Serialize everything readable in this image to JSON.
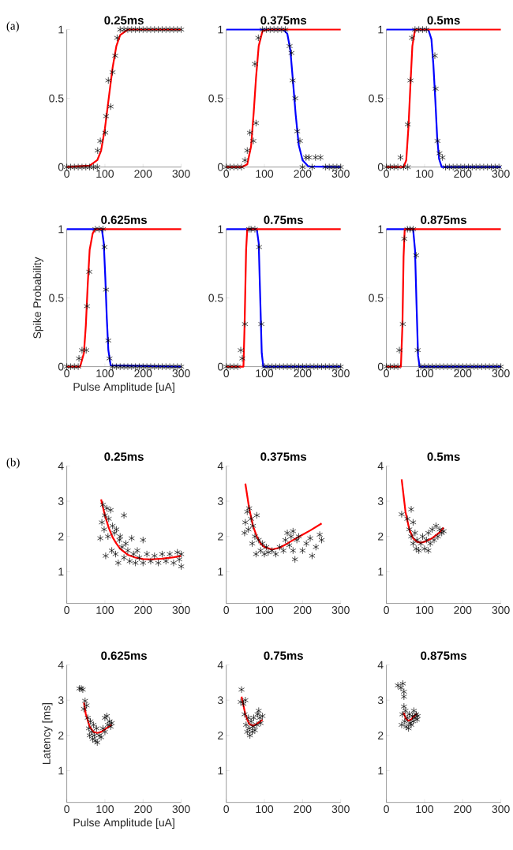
{
  "chart_data": [
    {
      "type": "scatter",
      "title": "0.25ms",
      "annotations": [
        "(a)"
      ],
      "marker": "cross",
      "xlim": [
        0,
        300
      ],
      "ylim": [
        0,
        1
      ],
      "xticks": [
        0,
        100,
        200,
        300
      ],
      "yticks": [
        0,
        0.5,
        1
      ],
      "series": [
        {
          "color": "#000000",
          "x": [
            0,
            10,
            20,
            30,
            40,
            50,
            60,
            70,
            80,
            81,
            88,
            101,
            103,
            109,
            115,
            120,
            127,
            132,
            140,
            150,
            160,
            170,
            180,
            190,
            200,
            210,
            220,
            230,
            240,
            250,
            260,
            270,
            280,
            290,
            300
          ],
          "values": [
            0,
            0,
            0,
            0,
            0,
            0,
            0,
            0,
            0,
            0.12,
            0.19,
            0.25,
            0.37,
            0.63,
            0.44,
            0.69,
            0.81,
            0.94,
            1,
            1,
            1,
            1,
            1,
            1,
            1,
            1,
            1,
            1,
            1,
            1,
            1,
            1,
            1,
            1,
            1
          ]
        },
        {
          "type": "line",
          "marker": "none",
          "color": "#ff0000",
          "x": [
            0,
            60,
            80,
            90,
            100,
            110,
            120,
            130,
            140,
            160,
            300
          ],
          "values": [
            0,
            0.01,
            0.05,
            0.12,
            0.28,
            0.5,
            0.72,
            0.88,
            0.96,
            1,
            1
          ]
        }
      ]
    },
    {
      "type": "scatter",
      "title": "0.375ms",
      "marker": "cross",
      "xlim": [
        0,
        300
      ],
      "ylim": [
        0,
        1
      ],
      "xticks": [
        0,
        100,
        200,
        300
      ],
      "yticks": [
        0,
        0.5,
        1
      ],
      "series": [
        {
          "color": "#000000",
          "x": [
            0,
            10,
            20,
            30,
            40,
            49,
            55,
            62,
            71,
            75,
            78,
            84,
            95,
            105,
            115,
            125,
            135,
            145,
            155,
            166,
            171,
            174,
            181,
            186,
            193,
            200,
            209,
            217,
            225,
            234,
            247,
            260,
            270,
            280,
            290,
            300
          ],
          "values": [
            0,
            0,
            0,
            0,
            0,
            0.05,
            0.12,
            0.25,
            0.19,
            0.75,
            0.32,
            0.94,
            1,
            1,
            1,
            1,
            1,
            1,
            1,
            0.88,
            0.83,
            0.63,
            0.5,
            0.26,
            0.19,
            0,
            0.07,
            0.07,
            0,
            0.07,
            0.07,
            0,
            0,
            0,
            0,
            0
          ]
        },
        {
          "type": "line",
          "marker": "none",
          "color": "#0000ff",
          "x": [
            0,
            150,
            160,
            168,
            175,
            182,
            190,
            200,
            215,
            300
          ],
          "values": [
            1,
            1,
            0.97,
            0.85,
            0.62,
            0.38,
            0.16,
            0.05,
            0.005,
            0
          ]
        },
        {
          "type": "line",
          "marker": "none",
          "color": "#ff0000",
          "x": [
            0,
            40,
            55,
            65,
            72,
            78,
            85,
            95,
            110,
            300
          ],
          "values": [
            0,
            0,
            0.02,
            0.15,
            0.4,
            0.65,
            0.88,
            0.99,
            1,
            1
          ]
        }
      ]
    },
    {
      "type": "scatter",
      "title": "0.5ms",
      "marker": "cross",
      "xlim": [
        0,
        300
      ],
      "ylim": [
        0,
        1
      ],
      "xticks": [
        0,
        100,
        200,
        300
      ],
      "yticks": [
        0,
        0.5,
        1
      ],
      "series": [
        {
          "color": "#000000",
          "x": [
            0,
            10,
            20,
            30,
            37,
            45,
            56,
            56,
            63,
            67,
            75,
            85,
            95,
            105,
            127,
            129,
            134,
            139,
            147,
            155,
            165,
            175,
            185,
            195,
            205,
            215,
            225,
            235,
            245,
            255,
            265,
            275,
            285,
            295
          ],
          "values": [
            0,
            0,
            0,
            0,
            0.07,
            0,
            0,
            0.31,
            0.63,
            0.94,
            1,
            1,
            1,
            1,
            0.81,
            0.57,
            0.19,
            0.1,
            0.07,
            0,
            0,
            0,
            0,
            0,
            0,
            0,
            0,
            0,
            0,
            0,
            0,
            0,
            0,
            0
          ]
        },
        {
          "type": "line",
          "marker": "none",
          "color": "#0000ff",
          "x": [
            0,
            110,
            118,
            123,
            128,
            133,
            138,
            145,
            300
          ],
          "values": [
            1,
            1,
            0.93,
            0.75,
            0.5,
            0.22,
            0.06,
            0,
            0
          ]
        },
        {
          "type": "line",
          "marker": "none",
          "color": "#ff0000",
          "x": [
            0,
            45,
            52,
            58,
            63,
            68,
            75,
            300
          ],
          "values": [
            0,
            0,
            0.05,
            0.3,
            0.6,
            0.88,
            1,
            1
          ]
        }
      ]
    },
    {
      "type": "scatter",
      "title": "0.625ms",
      "xlabel": "Pulse Amplitude [uA]",
      "ylabel": "Spike Probability",
      "marker": "cross",
      "xlim": [
        0,
        300
      ],
      "ylim": [
        0,
        1
      ],
      "xticks": [
        0,
        100,
        200,
        300
      ],
      "yticks": [
        0,
        0.5,
        1
      ],
      "series": [
        {
          "color": "#000000",
          "x": [
            0,
            10,
            20,
            30,
            32,
            40,
            51,
            53,
            59,
            75,
            85,
            95,
            99,
            103,
            109,
            112,
            120,
            130,
            140,
            150,
            160,
            170,
            180,
            190,
            200,
            210,
            220,
            230,
            240,
            250,
            260,
            270,
            280,
            290,
            300
          ],
          "values": [
            0,
            0,
            0,
            0,
            0.06,
            0.12,
            0.12,
            0.44,
            0.69,
            1,
            1,
            1,
            0.87,
            0.56,
            0.19,
            0.06,
            0,
            0,
            0,
            0,
            0,
            0,
            0,
            0,
            0,
            0,
            0,
            0,
            0,
            0,
            0,
            0,
            0,
            0,
            0
          ]
        },
        {
          "type": "line",
          "marker": "none",
          "color": "#0000ff",
          "x": [
            0,
            92,
            97,
            101,
            105,
            109,
            115,
            300
          ],
          "values": [
            1,
            1,
            0.9,
            0.65,
            0.35,
            0.12,
            0.01,
            0
          ]
        },
        {
          "type": "line",
          "marker": "none",
          "color": "#ff0000",
          "x": [
            0,
            35,
            45,
            50,
            55,
            60,
            68,
            75,
            300
          ],
          "values": [
            0,
            0,
            0.1,
            0.3,
            0.6,
            0.85,
            0.97,
            1,
            1
          ]
        }
      ]
    },
    {
      "type": "scatter",
      "title": "0.75ms",
      "marker": "cross",
      "xlim": [
        0,
        300
      ],
      "ylim": [
        0,
        1
      ],
      "xticks": [
        0,
        100,
        200,
        300
      ],
      "yticks": [
        0,
        0.5,
        1
      ],
      "series": [
        {
          "color": "#000000",
          "x": [
            0,
            10,
            20,
            30,
            38,
            42,
            49,
            60,
            65,
            75,
            86,
            92,
            100,
            110,
            120,
            130,
            140,
            150,
            160,
            170,
            180,
            190,
            200,
            210,
            220,
            230,
            240,
            250,
            260,
            270,
            280,
            290,
            300
          ],
          "values": [
            0,
            0,
            0,
            0,
            0.12,
            0.06,
            0.31,
            1,
            1,
            1,
            0.87,
            0.31,
            0,
            0,
            0,
            0,
            0,
            0,
            0,
            0,
            0,
            0,
            0,
            0,
            0,
            0,
            0,
            0,
            0,
            0,
            0,
            0,
            0
          ]
        },
        {
          "type": "line",
          "marker": "none",
          "color": "#0000ff",
          "x": [
            0,
            80,
            85,
            89,
            93,
            97,
            300
          ],
          "values": [
            1,
            1,
            0.9,
            0.5,
            0.1,
            0,
            0
          ]
        },
        {
          "type": "line",
          "marker": "none",
          "color": "#ff0000",
          "x": [
            0,
            45,
            48,
            52,
            55,
            300
          ],
          "values": [
            0,
            0,
            0.3,
            0.85,
            1,
            1
          ]
        }
      ]
    },
    {
      "type": "scatter",
      "title": "0.875ms",
      "marker": "cross",
      "xlim": [
        0,
        300
      ],
      "ylim": [
        0,
        1
      ],
      "xticks": [
        0,
        100,
        200,
        300
      ],
      "yticks": [
        0,
        0.5,
        1
      ],
      "series": [
        {
          "color": "#000000",
          "x": [
            0,
            10,
            20,
            30,
            34,
            43,
            47,
            55,
            62,
            70,
            78,
            82,
            90,
            100,
            110,
            120,
            130,
            140,
            150,
            160,
            170,
            180,
            190,
            200,
            210,
            220,
            230,
            240,
            250,
            260,
            270,
            280,
            290,
            300
          ],
          "values": [
            0,
            0,
            0,
            0,
            0.12,
            0.31,
            0.93,
            1,
            1,
            1,
            0.81,
            0.12,
            0,
            0,
            0,
            0,
            0,
            0,
            0,
            0,
            0,
            0,
            0,
            0,
            0,
            0,
            0,
            0,
            0,
            0,
            0,
            0,
            0,
            0
          ]
        },
        {
          "type": "line",
          "marker": "none",
          "color": "#0000ff",
          "x": [
            0,
            70,
            75,
            79,
            83,
            87,
            300
          ],
          "values": [
            1,
            1,
            0.85,
            0.45,
            0.08,
            0,
            0
          ]
        },
        {
          "type": "line",
          "marker": "none",
          "color": "#ff0000",
          "x": [
            0,
            38,
            42,
            45,
            48,
            300
          ],
          "values": [
            0,
            0,
            0.3,
            0.8,
            1,
            1
          ]
        }
      ]
    },
    {
      "type": "scatter",
      "title": "0.25ms",
      "annotations": [
        "(b)"
      ],
      "marker": "cross",
      "xlim": [
        0,
        300
      ],
      "ylim": [
        0.1,
        4
      ],
      "xticks": [
        0,
        100,
        200,
        300
      ],
      "yticks": [
        1,
        2,
        3,
        4
      ],
      "series": [
        {
          "color": "#000000",
          "x": [
            88,
            92,
            95,
            98,
            100,
            102,
            105,
            108,
            110,
            115,
            118,
            120,
            125,
            128,
            130,
            135,
            138,
            140,
            145,
            150,
            150,
            155,
            160,
            165,
            170,
            175,
            180,
            185,
            190,
            200,
            200,
            210,
            220,
            230,
            240,
            250,
            260,
            270,
            280,
            290,
            295,
            300,
            300
          ],
          "values": [
            1.95,
            2.4,
            2.9,
            2.2,
            2.6,
            1.45,
            2.8,
            2.0,
            2.5,
            2.75,
            1.6,
            2.3,
            2.1,
            1.5,
            2.2,
            1.25,
            1.9,
            2.0,
            1.7,
            2.6,
            1.4,
            1.8,
            1.6,
            1.3,
            1.95,
            1.5,
            1.25,
            1.6,
            1.4,
            1.9,
            1.25,
            1.5,
            1.3,
            1.45,
            1.25,
            1.5,
            1.3,
            1.5,
            1.25,
            1.55,
            1.35,
            1.15,
            1.5
          ]
        },
        {
          "type": "line",
          "marker": "none",
          "color": "#ff0000",
          "x": [
            90,
            100,
            110,
            120,
            130,
            140,
            160,
            180,
            200,
            220,
            250,
            280,
            300
          ],
          "values": [
            3.05,
            2.6,
            2.25,
            1.98,
            1.8,
            1.65,
            1.48,
            1.4,
            1.36,
            1.35,
            1.37,
            1.41,
            1.45
          ]
        }
      ]
    },
    {
      "type": "scatter",
      "title": "0.375ms",
      "marker": "cross",
      "xlim": [
        0,
        300
      ],
      "ylim": [
        0.1,
        4
      ],
      "xticks": [
        0,
        100,
        200,
        300
      ],
      "yticks": [
        1,
        2,
        3,
        4
      ],
      "series": [
        {
          "color": "#000000",
          "x": [
            48,
            50,
            55,
            58,
            60,
            65,
            68,
            70,
            75,
            78,
            80,
            85,
            90,
            95,
            100,
            105,
            110,
            120,
            130,
            140,
            150,
            155,
            160,
            165,
            170,
            175,
            175,
            180,
            185,
            190,
            200,
            210,
            220,
            225,
            235,
            245,
            250
          ],
          "values": [
            2.1,
            2.4,
            2.7,
            2.2,
            2.8,
            2.5,
            1.8,
            2.3,
            2.0,
            1.5,
            2.6,
            1.9,
            1.6,
            1.8,
            1.5,
            1.7,
            1.55,
            1.6,
            1.5,
            1.7,
            1.6,
            1.9,
            2.1,
            1.75,
            2.0,
            2.15,
            1.6,
            1.35,
            1.9,
            2.0,
            1.6,
            1.8,
            1.95,
            1.45,
            1.7,
            2.05,
            1.9
          ]
        },
        {
          "type": "line",
          "marker": "none",
          "color": "#ff0000",
          "x": [
            50,
            60,
            70,
            80,
            90,
            100,
            120,
            140,
            160,
            180,
            200,
            220,
            250
          ],
          "values": [
            3.5,
            2.8,
            2.3,
            2.0,
            1.8,
            1.7,
            1.63,
            1.68,
            1.8,
            1.93,
            2.05,
            2.17,
            2.37
          ]
        }
      ]
    },
    {
      "type": "scatter",
      "title": "0.5ms",
      "marker": "cross",
      "xlim": [
        0,
        300
      ],
      "ylim": [
        0.1,
        4
      ],
      "xticks": [
        0,
        100,
        200,
        300
      ],
      "yticks": [
        1,
        2,
        3,
        4
      ],
      "series": [
        {
          "color": "#000000",
          "x": [
            40,
            55,
            60,
            65,
            65,
            70,
            70,
            75,
            78,
            80,
            85,
            90,
            95,
            100,
            105,
            110,
            110,
            115,
            120,
            125,
            130,
            135,
            140,
            145,
            150
          ],
          "values": [
            2.63,
            2.5,
            2.2,
            2.77,
            2.0,
            2.4,
            1.8,
            2.1,
            1.65,
            1.9,
            1.6,
            1.8,
            2.0,
            1.65,
            1.9,
            2.1,
            1.6,
            1.8,
            2.2,
            1.9,
            2.3,
            2.0,
            2.2,
            2.1,
            2.15
          ]
        },
        {
          "type": "line",
          "marker": "none",
          "color": "#ff0000",
          "x": [
            40,
            50,
            60,
            70,
            80,
            90,
            100,
            120,
            140,
            150
          ],
          "values": [
            3.62,
            2.7,
            2.2,
            1.95,
            1.85,
            1.82,
            1.85,
            1.95,
            2.12,
            2.25
          ]
        }
      ]
    },
    {
      "type": "scatter",
      "title": "0.625ms",
      "xlabel": "Pulse Amplitude [uA]",
      "ylabel": "Latency [ms]",
      "marker": "cross",
      "xlim": [
        0,
        300
      ],
      "ylim": [
        0.1,
        4
      ],
      "xticks": [
        0,
        100,
        200,
        300
      ],
      "yticks": [
        1,
        2,
        3,
        4
      ],
      "series": [
        {
          "color": "#000000",
          "x": [
            33,
            38,
            42,
            48,
            45,
            52,
            55,
            58,
            60,
            62,
            65,
            68,
            70,
            72,
            75,
            78,
            80,
            85,
            90,
            95,
            100,
            100,
            105,
            108,
            112,
            115,
            118
          ],
          "values": [
            3.33,
            3.33,
            3.3,
            2.98,
            2.75,
            2.85,
            2.5,
            2.2,
            2.0,
            2.4,
            2.1,
            1.9,
            2.3,
            2.0,
            1.85,
            2.2,
            1.8,
            2.0,
            1.95,
            2.2,
            2.5,
            2.1,
            2.55,
            2.3,
            2.4,
            2.25,
            2.35
          ]
        },
        {
          "type": "line",
          "marker": "none",
          "color": "#ff0000",
          "x": [
            45,
            50,
            60,
            70,
            80,
            90,
            100,
            110,
            118
          ],
          "values": [
            2.93,
            2.6,
            2.25,
            2.1,
            2.07,
            2.1,
            2.17,
            2.25,
            2.3
          ]
        }
      ]
    },
    {
      "type": "scatter",
      "title": "0.75ms",
      "marker": "cross",
      "xlim": [
        0,
        300
      ],
      "ylim": [
        0.1,
        4
      ],
      "xticks": [
        0,
        100,
        200,
        300
      ],
      "yticks": [
        1,
        2,
        3,
        4
      ],
      "series": [
        {
          "color": "#000000",
          "x": [
            40,
            38,
            45,
            50,
            48,
            52,
            55,
            58,
            60,
            62,
            65,
            68,
            70,
            72,
            75,
            80,
            82,
            85,
            88,
            90,
            95
          ],
          "values": [
            3.3,
            2.95,
            2.9,
            3.0,
            2.6,
            2.3,
            2.1,
            2.5,
            2.2,
            2.0,
            2.4,
            2.1,
            2.25,
            2.5,
            2.15,
            2.3,
            2.6,
            2.7,
            2.5,
            2.35,
            2.55
          ]
        },
        {
          "type": "line",
          "marker": "none",
          "color": "#ff0000",
          "x": [
            40,
            45,
            50,
            55,
            60,
            70,
            80,
            90,
            95
          ],
          "values": [
            3.1,
            2.85,
            2.6,
            2.45,
            2.33,
            2.27,
            2.33,
            2.4,
            2.44
          ]
        }
      ]
    },
    {
      "type": "scatter",
      "title": "0.875ms",
      "marker": "cross",
      "xlim": [
        0,
        300
      ],
      "ylim": [
        0.1,
        4
      ],
      "xticks": [
        0,
        100,
        200,
        300
      ],
      "yticks": [
        1,
        2,
        3,
        4
      ],
      "series": [
        {
          "color": "#000000",
          "x": [
            30,
            38,
            43,
            46,
            46,
            46,
            40,
            42,
            48,
            50,
            52,
            55,
            58,
            60,
            62,
            65,
            68,
            70,
            72,
            75,
            78,
            80,
            82
          ],
          "values": [
            3.42,
            3.35,
            3.47,
            3.24,
            3.1,
            2.82,
            2.3,
            2.6,
            2.4,
            2.7,
            2.25,
            2.5,
            2.2,
            2.6,
            2.35,
            2.3,
            2.55,
            2.4,
            2.7,
            2.5,
            2.6,
            2.45,
            2.55
          ]
        },
        {
          "type": "line",
          "marker": "none",
          "color": "#ff0000",
          "x": [
            45,
            50,
            55,
            60,
            65,
            70,
            80
          ],
          "values": [
            2.65,
            2.5,
            2.43,
            2.42,
            2.45,
            2.52,
            2.62
          ]
        }
      ]
    }
  ]
}
